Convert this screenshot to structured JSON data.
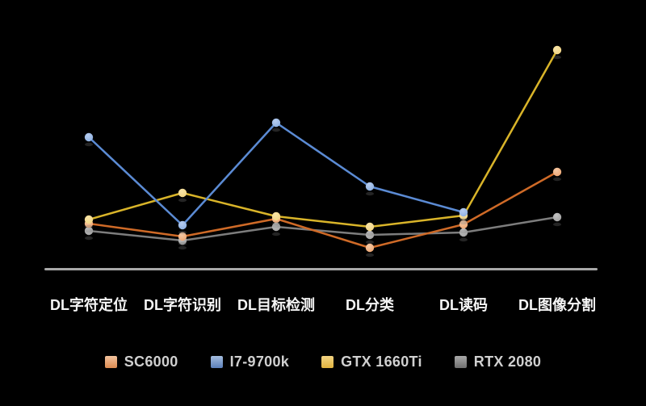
{
  "page": {
    "background_color": "#000000"
  },
  "chart_data": {
    "type": "line",
    "title": "",
    "xlabel": "",
    "ylabel": "",
    "y_axis_visible": false,
    "value_units": "relative height above baseline in px (no y-axis ticks shown in image)",
    "legend_position": "bottom",
    "grid": false,
    "axis_line_color": "#a8a8a8",
    "category_label_color": "#f5f5f5",
    "legend_text_color": "#d0d0d0",
    "categories": [
      "DL字符定位",
      "DL字符识别",
      "DL目标检测",
      "DL分类",
      "DL读码",
      "DL图像分割"
    ],
    "series": [
      {
        "name": "SC6000",
        "line_color": "#cf6a27",
        "marker_color": "#eda06a",
        "highlight_color": "#f5c9a5",
        "swatch_top": "#f2c39e",
        "swatch_bottom": "#dd8a50",
        "values": [
          56,
          40,
          62,
          26,
          55,
          120
        ]
      },
      {
        "name": "I7-9700k",
        "line_color": "#5b8bd4",
        "marker_color": "#85aade",
        "highlight_color": "#b7cdf0",
        "swatch_top": "#a6bedf",
        "swatch_bottom": "#5b7fba",
        "values": [
          163,
          54,
          181,
          102,
          70,
          null
        ]
      },
      {
        "name": "GTX 1660Ti",
        "line_color": "#d9b429",
        "marker_color": "#f1d27c",
        "highlight_color": "#f8e4a8",
        "swatch_top": "#f3d483",
        "swatch_bottom": "#e0b23e",
        "values": [
          61,
          94,
          65,
          52,
          66,
          271
        ]
      },
      {
        "name": "RTX 2080",
        "line_color": "#7d7d7d",
        "marker_color": "#9a9a9a",
        "highlight_color": "#c4c4c4",
        "swatch_top": "#a9a9a9",
        "swatch_bottom": "#6f6f6f",
        "values": [
          47,
          35,
          52,
          42,
          45,
          64
        ]
      }
    ]
  }
}
